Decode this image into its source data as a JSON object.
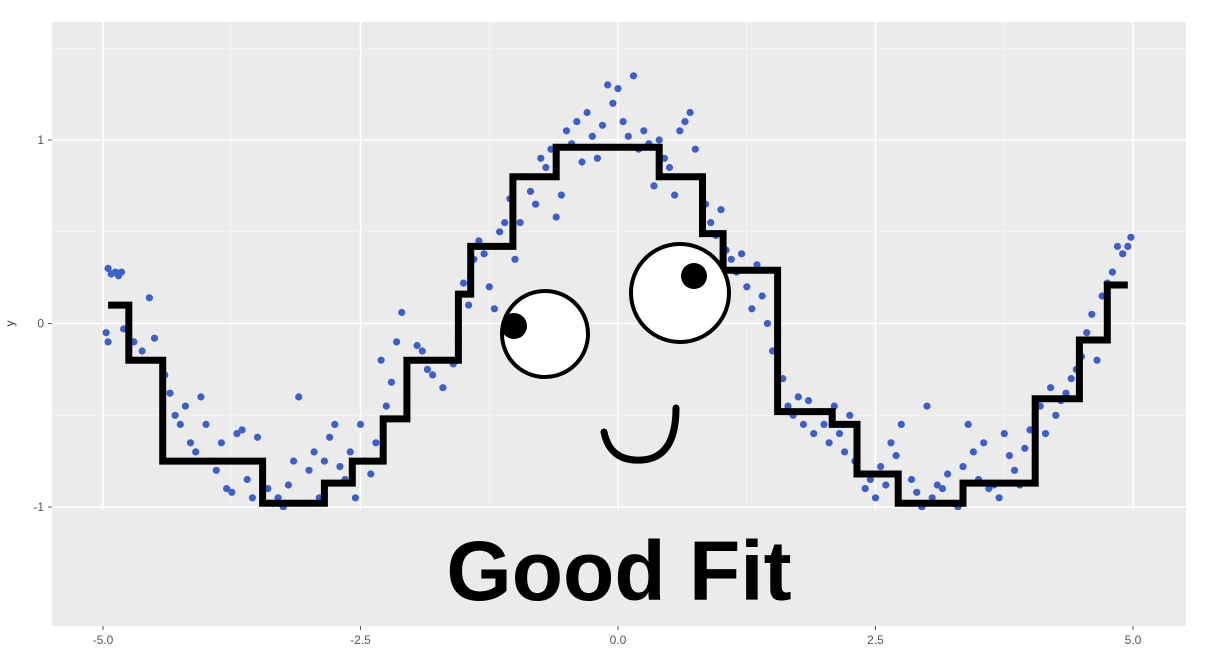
{
  "chart_data": {
    "type": "scatter",
    "xlabel": "",
    "ylabel": "y",
    "xlim": [
      -5.0,
      5.0
    ],
    "ylim": [
      -1.6,
      1.6
    ],
    "x_ticks": [
      -5.0,
      -2.5,
      0.0,
      2.5,
      5.0
    ],
    "x_tick_labels": [
      "-5.0",
      "-2.5",
      "0.0",
      "2.5",
      "5.0"
    ],
    "y_ticks": [
      -1,
      0,
      1
    ],
    "y_tick_labels": [
      "-1",
      "0",
      "1"
    ],
    "grid": true,
    "background": "#ebebeb",
    "point_color": "#3d5fc9",
    "line_color": "#000000",
    "series": [
      {
        "kind": "points",
        "points": [
          [
            -4.95,
            0.3
          ],
          [
            -4.92,
            0.27
          ],
          [
            -4.88,
            0.28
          ],
          [
            -4.85,
            0.26
          ],
          [
            -4.82,
            0.28
          ],
          [
            -4.97,
            -0.05
          ],
          [
            -4.95,
            -0.1
          ],
          [
            -4.8,
            -0.03
          ],
          [
            -4.7,
            -0.1
          ],
          [
            -4.62,
            -0.15
          ],
          [
            -4.55,
            0.14
          ],
          [
            -4.5,
            -0.08
          ],
          [
            -4.45,
            -0.2
          ],
          [
            -4.4,
            -0.28
          ],
          [
            -4.35,
            -0.38
          ],
          [
            -4.3,
            -0.5
          ],
          [
            -4.25,
            -0.55
          ],
          [
            -4.2,
            -0.45
          ],
          [
            -4.15,
            -0.65
          ],
          [
            -4.1,
            -0.7
          ],
          [
            -4.05,
            -0.4
          ],
          [
            -4.0,
            -0.55
          ],
          [
            -3.95,
            -0.75
          ],
          [
            -3.9,
            -0.8
          ],
          [
            -3.85,
            -0.65
          ],
          [
            -3.8,
            -0.9
          ],
          [
            -3.75,
            -0.92
          ],
          [
            -3.7,
            -0.6
          ],
          [
            -3.65,
            -0.58
          ],
          [
            -3.6,
            -0.85
          ],
          [
            -3.55,
            -0.95
          ],
          [
            -3.5,
            -0.62
          ],
          [
            -3.45,
            -0.8
          ],
          [
            -3.4,
            -0.9
          ],
          [
            -3.35,
            -0.98
          ],
          [
            -3.3,
            -0.95
          ],
          [
            -3.25,
            -1.0
          ],
          [
            -3.2,
            -0.88
          ],
          [
            -3.15,
            -0.75
          ],
          [
            -3.1,
            -0.4
          ],
          [
            -3.05,
            -0.98
          ],
          [
            -3.0,
            -0.8
          ],
          [
            -2.95,
            -0.7
          ],
          [
            -2.9,
            -0.95
          ],
          [
            -2.85,
            -0.75
          ],
          [
            -2.8,
            -0.62
          ],
          [
            -2.75,
            -0.55
          ],
          [
            -2.7,
            -0.78
          ],
          [
            -2.65,
            -0.85
          ],
          [
            -2.6,
            -0.7
          ],
          [
            -2.55,
            -0.95
          ],
          [
            -2.5,
            -0.55
          ],
          [
            -2.45,
            -0.75
          ],
          [
            -2.4,
            -0.82
          ],
          [
            -2.35,
            -0.65
          ],
          [
            -2.3,
            -0.2
          ],
          [
            -2.25,
            -0.45
          ],
          [
            -2.2,
            -0.32
          ],
          [
            -2.15,
            -0.1
          ],
          [
            -2.1,
            0.06
          ],
          [
            -2.05,
            -0.4
          ],
          [
            -2.0,
            -0.2
          ],
          [
            -1.95,
            -0.12
          ],
          [
            -1.9,
            -0.15
          ],
          [
            -1.85,
            -0.25
          ],
          [
            -1.8,
            -0.28
          ],
          [
            -1.7,
            -0.35
          ],
          [
            -1.6,
            -0.22
          ],
          [
            -1.55,
            -0.08
          ],
          [
            -1.5,
            0.22
          ],
          [
            -1.45,
            0.1
          ],
          [
            -1.4,
            0.35
          ],
          [
            -1.35,
            0.45
          ],
          [
            -1.3,
            0.38
          ],
          [
            -1.25,
            0.2
          ],
          [
            -1.2,
            0.08
          ],
          [
            -1.15,
            0.5
          ],
          [
            -1.1,
            0.55
          ],
          [
            -1.05,
            0.68
          ],
          [
            -1.0,
            0.35
          ],
          [
            -0.95,
            0.55
          ],
          [
            -0.9,
            0.8
          ],
          [
            -0.85,
            0.72
          ],
          [
            -0.8,
            0.65
          ],
          [
            -0.75,
            0.9
          ],
          [
            -0.7,
            0.85
          ],
          [
            -0.65,
            0.95
          ],
          [
            -0.6,
            0.58
          ],
          [
            -0.55,
            0.7
          ],
          [
            -0.5,
            1.05
          ],
          [
            -0.45,
            0.98
          ],
          [
            -0.4,
            1.1
          ],
          [
            -0.35,
            0.88
          ],
          [
            -0.3,
            1.15
          ],
          [
            -0.25,
            1.02
          ],
          [
            -0.2,
            0.9
          ],
          [
            -0.15,
            1.08
          ],
          [
            -0.1,
            1.3
          ],
          [
            -0.05,
            1.2
          ],
          [
            0.0,
            1.28
          ],
          [
            0.05,
            1.1
          ],
          [
            0.1,
            1.02
          ],
          [
            0.15,
            1.35
          ],
          [
            0.2,
            0.95
          ],
          [
            0.25,
            1.05
          ],
          [
            0.3,
            0.98
          ],
          [
            0.35,
            0.75
          ],
          [
            0.4,
            1.0
          ],
          [
            0.45,
            0.9
          ],
          [
            0.5,
            0.85
          ],
          [
            0.55,
            0.7
          ],
          [
            0.6,
            1.05
          ],
          [
            0.65,
            1.1
          ],
          [
            0.7,
            1.15
          ],
          [
            0.75,
            0.95
          ],
          [
            0.8,
            0.8
          ],
          [
            0.85,
            0.65
          ],
          [
            0.9,
            0.55
          ],
          [
            0.95,
            0.48
          ],
          [
            1.0,
            0.62
          ],
          [
            1.05,
            0.4
          ],
          [
            1.1,
            0.35
          ],
          [
            1.15,
            0.28
          ],
          [
            1.2,
            0.38
          ],
          [
            1.25,
            0.2
          ],
          [
            1.3,
            0.08
          ],
          [
            1.35,
            0.32
          ],
          [
            1.4,
            0.15
          ],
          [
            1.45,
            0.0
          ],
          [
            1.5,
            -0.15
          ],
          [
            1.55,
            -0.05
          ],
          [
            1.6,
            -0.3
          ],
          [
            1.65,
            -0.45
          ],
          [
            1.7,
            -0.5
          ],
          [
            1.75,
            -0.4
          ],
          [
            1.8,
            -0.55
          ],
          [
            1.85,
            -0.42
          ],
          [
            1.9,
            -0.6
          ],
          [
            1.95,
            -0.48
          ],
          [
            2.0,
            -0.55
          ],
          [
            2.05,
            -0.65
          ],
          [
            2.1,
            -0.45
          ],
          [
            2.15,
            -0.6
          ],
          [
            2.2,
            -0.7
          ],
          [
            2.25,
            -0.5
          ],
          [
            2.3,
            -0.75
          ],
          [
            2.35,
            -0.82
          ],
          [
            2.4,
            -0.9
          ],
          [
            2.45,
            -0.85
          ],
          [
            2.5,
            -0.95
          ],
          [
            2.55,
            -0.78
          ],
          [
            2.6,
            -0.88
          ],
          [
            2.65,
            -0.65
          ],
          [
            2.7,
            -0.72
          ],
          [
            2.75,
            -0.55
          ],
          [
            2.8,
            -0.98
          ],
          [
            2.85,
            -0.85
          ],
          [
            2.9,
            -0.92
          ],
          [
            2.95,
            -1.0
          ],
          [
            3.0,
            -0.45
          ],
          [
            3.05,
            -0.95
          ],
          [
            3.1,
            -0.88
          ],
          [
            3.15,
            -0.9
          ],
          [
            3.2,
            -0.82
          ],
          [
            3.25,
            -0.98
          ],
          [
            3.3,
            -1.0
          ],
          [
            3.35,
            -0.78
          ],
          [
            3.4,
            -0.55
          ],
          [
            3.45,
            -0.7
          ],
          [
            3.5,
            -0.85
          ],
          [
            3.55,
            -0.65
          ],
          [
            3.6,
            -0.9
          ],
          [
            3.65,
            -0.88
          ],
          [
            3.7,
            -0.95
          ],
          [
            3.75,
            -0.6
          ],
          [
            3.8,
            -0.72
          ],
          [
            3.85,
            -0.8
          ],
          [
            3.9,
            -0.88
          ],
          [
            3.95,
            -0.68
          ],
          [
            4.0,
            -0.58
          ],
          [
            4.05,
            -0.5
          ],
          [
            4.1,
            -0.45
          ],
          [
            4.15,
            -0.6
          ],
          [
            4.2,
            -0.35
          ],
          [
            4.25,
            -0.5
          ],
          [
            4.3,
            -0.42
          ],
          [
            4.35,
            -0.38
          ],
          [
            4.4,
            -0.3
          ],
          [
            4.45,
            -0.25
          ],
          [
            4.5,
            -0.18
          ],
          [
            4.55,
            -0.05
          ],
          [
            4.6,
            0.05
          ],
          [
            4.65,
            -0.2
          ],
          [
            4.7,
            0.15
          ],
          [
            4.75,
            0.22
          ],
          [
            4.8,
            0.28
          ],
          [
            4.85,
            0.42
          ],
          [
            4.9,
            0.38
          ],
          [
            4.95,
            0.42
          ],
          [
            4.98,
            0.47
          ]
        ]
      },
      {
        "kind": "step",
        "points": [
          [
            -4.95,
            0.1
          ],
          [
            -4.75,
            0.1
          ],
          [
            -4.75,
            -0.2
          ],
          [
            -4.42,
            -0.2
          ],
          [
            -4.42,
            -0.75
          ],
          [
            -3.45,
            -0.75
          ],
          [
            -3.45,
            -0.98
          ],
          [
            -2.85,
            -0.98
          ],
          [
            -2.85,
            -0.87
          ],
          [
            -2.58,
            -0.87
          ],
          [
            -2.58,
            -0.75
          ],
          [
            -2.28,
            -0.75
          ],
          [
            -2.28,
            -0.52
          ],
          [
            -2.05,
            -0.52
          ],
          [
            -2.05,
            -0.2
          ],
          [
            -1.55,
            -0.2
          ],
          [
            -1.55,
            0.16
          ],
          [
            -1.43,
            0.16
          ],
          [
            -1.43,
            0.42
          ],
          [
            -1.02,
            0.42
          ],
          [
            -1.02,
            0.8
          ],
          [
            -0.6,
            0.8
          ],
          [
            -0.6,
            0.96
          ],
          [
            0.4,
            0.96
          ],
          [
            0.4,
            0.8
          ],
          [
            0.82,
            0.8
          ],
          [
            0.82,
            0.49
          ],
          [
            1.02,
            0.49
          ],
          [
            1.02,
            0.29
          ],
          [
            1.55,
            0.29
          ],
          [
            1.55,
            -0.48
          ],
          [
            2.08,
            -0.48
          ],
          [
            2.08,
            -0.55
          ],
          [
            2.32,
            -0.55
          ],
          [
            2.32,
            -0.82
          ],
          [
            2.72,
            -0.82
          ],
          [
            2.72,
            -0.98
          ],
          [
            3.35,
            -0.98
          ],
          [
            3.35,
            -0.87
          ],
          [
            4.05,
            -0.87
          ],
          [
            4.05,
            -0.41
          ],
          [
            4.48,
            -0.41
          ],
          [
            4.48,
            -0.09
          ],
          [
            4.75,
            -0.09
          ],
          [
            4.75,
            0.21
          ],
          [
            4.95,
            0.21
          ]
        ]
      }
    ]
  },
  "caption": "Good Fit"
}
